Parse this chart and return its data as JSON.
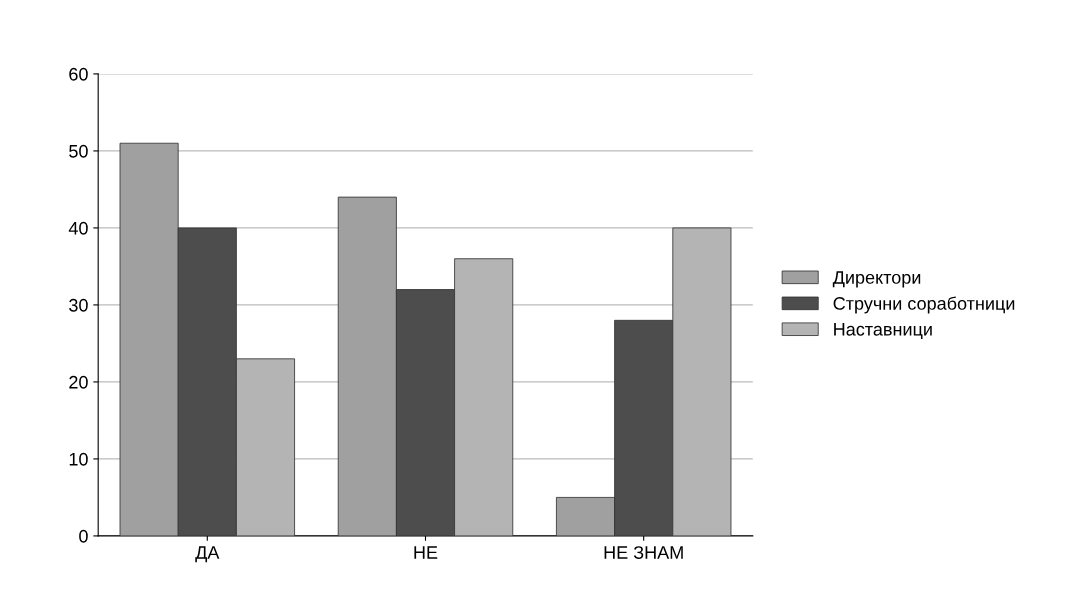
{
  "chart_data": {
    "type": "bar",
    "categories": [
      "ДА",
      "НЕ",
      "НЕ ЗНАМ"
    ],
    "series": [
      {
        "name": "Директори",
        "color": "#a0a0a0",
        "values": [
          51,
          44,
          5
        ]
      },
      {
        "name": "Стручни соработници",
        "color": "#4d4d4d",
        "values": [
          40,
          32,
          28
        ]
      },
      {
        "name": "Наставници",
        "color": "#b4b4b4",
        "values": [
          23,
          36,
          40
        ]
      }
    ],
    "ylim": [
      0,
      60
    ],
    "yticks": [
      0,
      10,
      20,
      30,
      40,
      50,
      60
    ],
    "grid": "y",
    "legend": "right"
  }
}
